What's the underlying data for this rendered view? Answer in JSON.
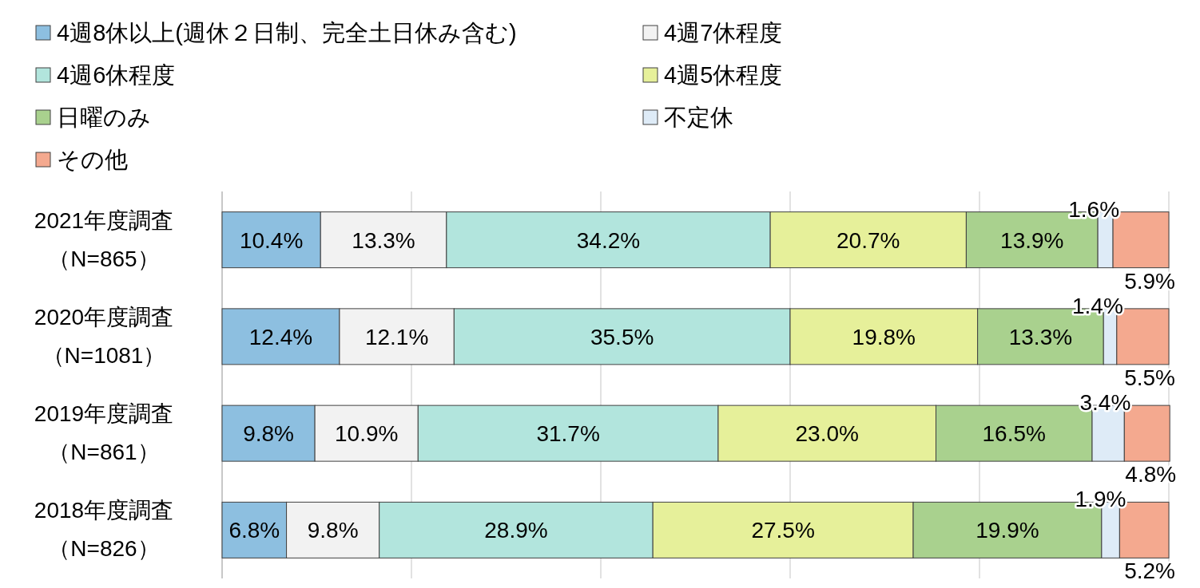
{
  "chart_data": {
    "type": "bar",
    "orientation": "horizontal",
    "stacked": true,
    "categories": [
      "2021年度調査（N=865）",
      "2020年度調査（N=1081）",
      "2019年度調査（N=861）",
      "2018年度調査（N=826）"
    ],
    "xlim": [
      0,
      100
    ],
    "xticks": [
      {
        "value": 0,
        "label": null
      },
      {
        "value": 20,
        "label": null
      },
      {
        "value": 40,
        "label": null
      },
      {
        "value": 60,
        "label": null
      },
      {
        "value": 80,
        "label": null
      },
      {
        "value": 100,
        "label": null
      }
    ],
    "tick_labels": "y",
    "grid": "x",
    "legend": "top",
    "series": [
      {
        "name": "4週8休以上(週休２日制、完全土日休み含む)",
        "color": "#8dbfe0",
        "values": [
          10.4,
          12.4,
          9.8,
          6.8
        ],
        "value_labels": [
          "10.4%",
          "12.4%",
          "9.8%",
          "6.8%"
        ]
      },
      {
        "name": "4週7休程度",
        "color": "#f2f2f2",
        "values": [
          13.3,
          12.1,
          10.9,
          9.8
        ],
        "value_labels": [
          "13.3%",
          "12.1%",
          "10.9%",
          "9.8%"
        ]
      },
      {
        "name": "4週6休程度",
        "color": "#b2e5dd",
        "values": [
          34.2,
          35.5,
          31.7,
          28.9
        ],
        "value_labels": [
          "34.2%",
          "35.5%",
          "31.7%",
          "28.9%"
        ]
      },
      {
        "name": "4週5休程度",
        "color": "#e6f09a",
        "values": [
          20.7,
          19.8,
          23.0,
          27.5
        ],
        "value_labels": [
          "20.7%",
          "19.8%",
          "23.0%",
          "27.5%"
        ]
      },
      {
        "name": "日曜のみ",
        "color": "#a9d18e",
        "values": [
          13.9,
          13.3,
          16.5,
          19.9
        ],
        "value_labels": [
          "13.9%",
          "13.3%",
          "16.5%",
          "19.9%"
        ]
      },
      {
        "name": "不定休",
        "color": "#deebf7",
        "values": [
          1.6,
          1.4,
          3.4,
          1.9
        ],
        "value_labels": [
          "1.6%",
          "1.4%",
          "3.4%",
          "1.9%"
        ]
      },
      {
        "name": "その他",
        "color": "#f4a98f",
        "values": [
          5.9,
          5.5,
          4.8,
          5.2
        ],
        "value_labels": [
          "5.9%",
          "5.5%",
          "4.8%",
          "5.2%"
        ]
      }
    ]
  }
}
